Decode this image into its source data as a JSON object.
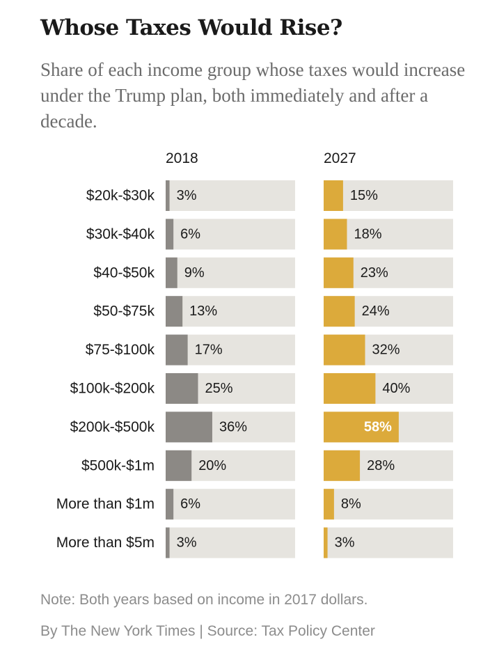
{
  "header": {
    "title": "Whose Taxes Would Rise?",
    "subtitle": "Share of each income group whose taxes would increase under the Trump plan, both immediately and after a decade."
  },
  "chart_data": {
    "type": "bar",
    "orientation": "horizontal",
    "title": "Whose Taxes Would Rise?",
    "unit": "%",
    "xlim": [
      0,
      100
    ],
    "categories": [
      "$20k-$30k",
      "$30k-$40k",
      "$40-$50k",
      "$50-$75k",
      "$75-$100k",
      "$100k-$200k",
      "$200k-$500k",
      "$500k-$1m",
      "More than $1m",
      "More than $5m"
    ],
    "series": [
      {
        "name": "2018",
        "color": "#8c8985",
        "values": [
          3,
          6,
          9,
          13,
          17,
          25,
          36,
          20,
          6,
          3
        ]
      },
      {
        "name": "2027",
        "color": "#dcaa3b",
        "values": [
          15,
          18,
          23,
          24,
          32,
          40,
          58,
          28,
          8,
          3
        ]
      }
    ],
    "track_color": "#e6e4df"
  },
  "footer": {
    "note": "Note: Both years based on income in 2017 dollars.",
    "credit": "By The New York Times | Source: Tax Policy Center"
  }
}
